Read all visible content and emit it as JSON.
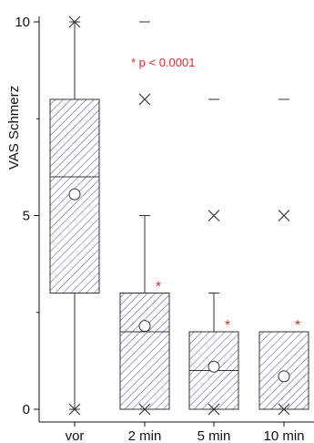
{
  "chart_data": {
    "type": "box",
    "ylabel": "VAS Schmerz",
    "ylim": [
      0,
      10
    ],
    "yticks": [
      0,
      5,
      10
    ],
    "categories": [
      "vor",
      "2 min",
      "5 min",
      "10 min"
    ],
    "annotation": "* p < 0.0001",
    "significance_marker": "*",
    "boxes": [
      {
        "category": "vor",
        "whisker_low": 0,
        "q1": 3,
        "median": 6,
        "q3": 8,
        "whisker_high": 10,
        "mean": 5.55,
        "outliers": [],
        "extremes": [
          0,
          10
        ],
        "significant": false
      },
      {
        "category": "2 min",
        "whisker_low": 0,
        "q1": 0,
        "median": 2,
        "q3": 3,
        "whisker_high": 5,
        "mean": 2.15,
        "outliers": [
          8
        ],
        "extremes": [
          0,
          10
        ],
        "significant": true
      },
      {
        "category": "5 min",
        "whisker_low": 0,
        "q1": 0,
        "median": 1,
        "q3": 2,
        "whisker_high": 3,
        "mean": 1.1,
        "outliers": [
          5
        ],
        "extremes": [
          0,
          8
        ],
        "significant": true
      },
      {
        "category": "10 min",
        "whisker_low": 0,
        "q1": 0,
        "median": 0,
        "q3": 2,
        "whisker_high": 2,
        "mean": 0.85,
        "outliers": [
          5
        ],
        "extremes": [
          0,
          8
        ],
        "significant": true
      }
    ],
    "colors": {
      "box_hatch": "#3a4a9a",
      "box_stroke": "#333333",
      "annotation": "#e8262a",
      "axis": "#111111"
    }
  }
}
